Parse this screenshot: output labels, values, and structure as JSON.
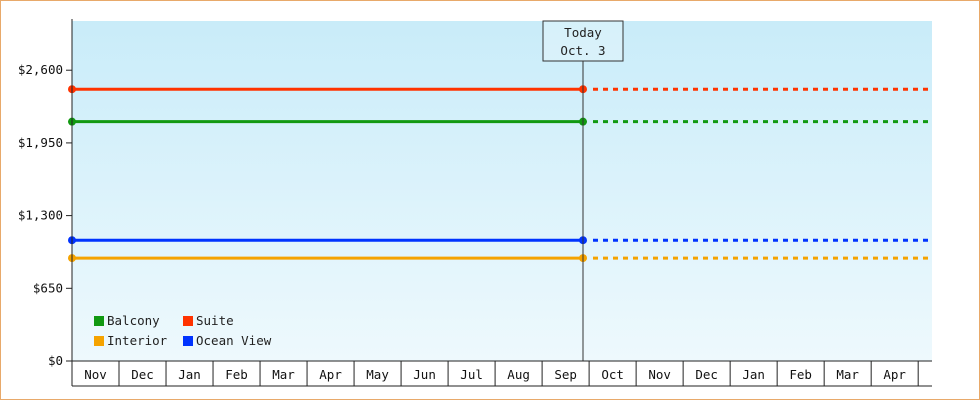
{
  "chart_data": {
    "type": "line",
    "title": "",
    "xlabel": "",
    "ylabel": "",
    "ylim": [
      0,
      3040
    ],
    "y_ticks": [
      0,
      650,
      1300,
      1950,
      2600
    ],
    "y_tick_labels": [
      "$0",
      "$650",
      "$1,300",
      "$1,950",
      "$2,600"
    ],
    "months": [
      "Nov",
      "Dec",
      "Jan",
      "Feb",
      "Mar",
      "Apr",
      "May",
      "Jun",
      "Jul",
      "Aug",
      "Sep",
      "Oct",
      "Nov",
      "Dec",
      "Jan",
      "Feb",
      "Mar",
      "Apr"
    ],
    "today": {
      "line1": "Today",
      "line2": "Oct. 3"
    },
    "grid": false,
    "legend_position": "bottom-left",
    "series": [
      {
        "name": "Balcony",
        "color": "#119911",
        "value": 2140
      },
      {
        "name": "Suite",
        "color": "#ff3300",
        "value": 2430
      },
      {
        "name": "Interior",
        "color": "#f5a300",
        "value": 920
      },
      {
        "name": "Ocean View",
        "color": "#0033ff",
        "value": 1080
      }
    ]
  }
}
